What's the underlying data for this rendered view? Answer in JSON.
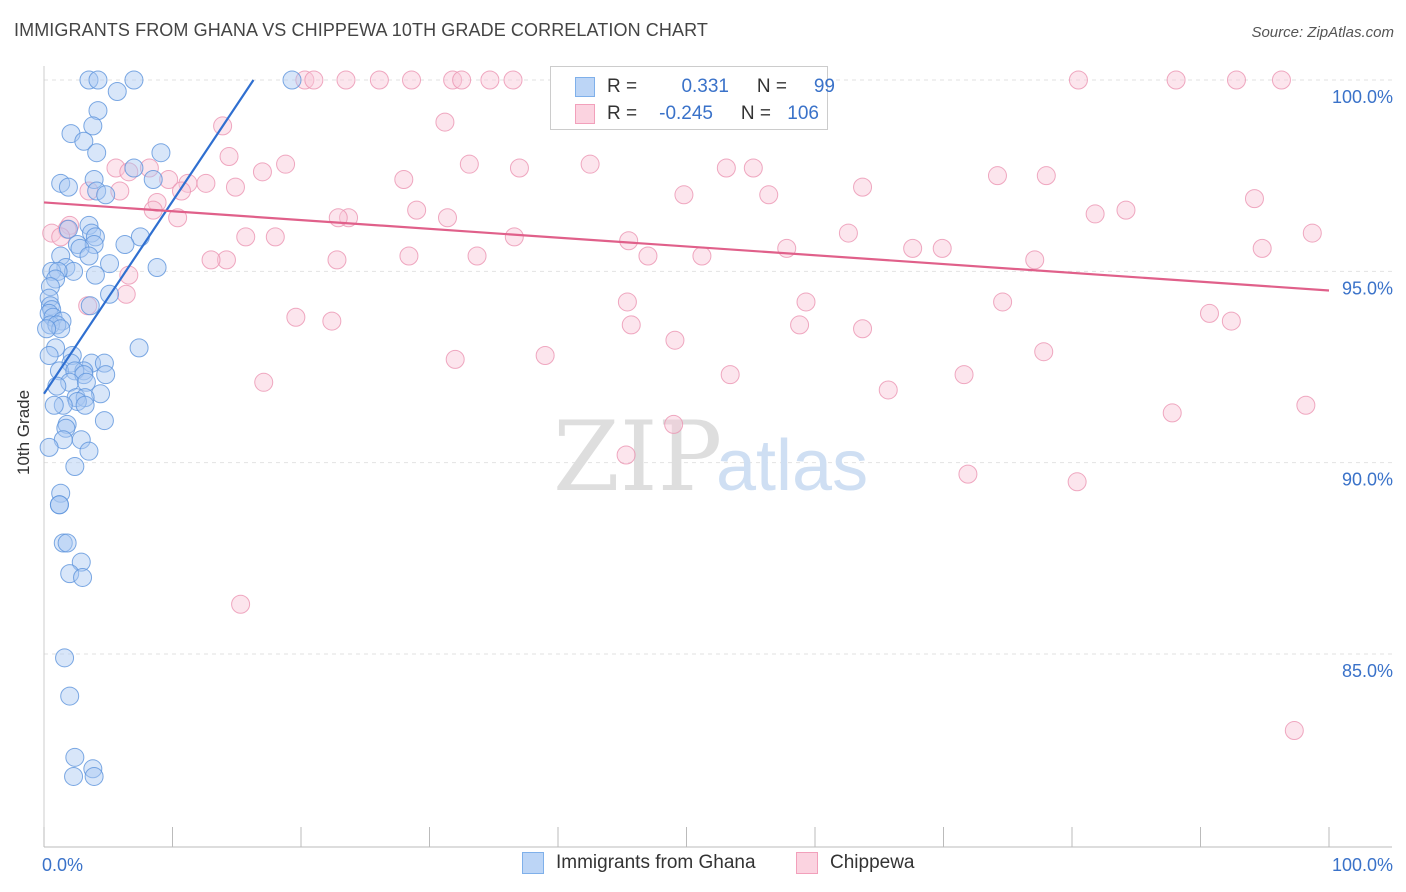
{
  "title": "IMMIGRANTS FROM GHANA VS CHIPPEWA 10TH GRADE CORRELATION CHART",
  "source": "Source: ZipAtlas.com",
  "watermark": {
    "zip": "ZIP",
    "atlas": "atlas"
  },
  "legend": {
    "rows": [
      {
        "r_label": "R =",
        "r_value": "0.331",
        "n_label": "N =",
        "n_value": "99",
        "color": "#7fb0ea"
      },
      {
        "r_label": "R =",
        "r_value": "-0.245",
        "n_label": "N =",
        "n_value": "106",
        "color": "#f2a0bb"
      }
    ]
  },
  "colors": {
    "blue_fill": "#a9c8f2",
    "blue_stroke": "#5c93dc",
    "blue_line": "#2f6fd0",
    "pink_fill": "#f8c6d6",
    "pink_stroke": "#eb93b1",
    "pink_line": "#e0608a",
    "axis_text": "#3a72c9",
    "grid": "#e2e2e2"
  },
  "chart_data": {
    "type": "scatter",
    "title": "IMMIGRANTS FROM GHANA VS CHIPPEWA 10TH GRADE CORRELATION CHART",
    "xlabel": "",
    "ylabel": "10th Grade",
    "xlim": [
      0,
      100
    ],
    "ylim": [
      80.5,
      100.7
    ],
    "x_tick_labels": [
      {
        "value": 0,
        "label": "0.0%"
      },
      {
        "value": 100,
        "label": "100.0%"
      }
    ],
    "y_tick_labels": [
      {
        "value": 100,
        "label": "100.0%"
      },
      {
        "value": 95,
        "label": "95.0%"
      },
      {
        "value": 90,
        "label": "90.0%"
      },
      {
        "value": 85,
        "label": "85.0%"
      }
    ],
    "series": [
      {
        "name": "Immigrants from Ghana",
        "color": "#7fb0ea",
        "trend": {
          "x": [
            0.0,
            16.3
          ],
          "y": [
            91.8,
            100.0
          ]
        },
        "points": [
          [
            3.5,
            100
          ],
          [
            4.2,
            100
          ],
          [
            7.0,
            100
          ],
          [
            5.7,
            99.7
          ],
          [
            19.3,
            100
          ],
          [
            4.2,
            99.2
          ],
          [
            3.8,
            98.8
          ],
          [
            2.1,
            98.6
          ],
          [
            3.1,
            98.4
          ],
          [
            4.1,
            98.1
          ],
          [
            9.1,
            98.1
          ],
          [
            7.0,
            97.7
          ],
          [
            3.9,
            97.4
          ],
          [
            8.5,
            97.4
          ],
          [
            1.3,
            97.3
          ],
          [
            1.9,
            97.2
          ],
          [
            4.1,
            97.1
          ],
          [
            4.8,
            97.0
          ],
          [
            3.5,
            96.2
          ],
          [
            1.9,
            96.1
          ],
          [
            3.7,
            96.0
          ],
          [
            4.0,
            95.9
          ],
          [
            7.5,
            95.9
          ],
          [
            2.6,
            95.7
          ],
          [
            3.9,
            95.7
          ],
          [
            6.3,
            95.7
          ],
          [
            2.8,
            95.6
          ],
          [
            1.3,
            95.4
          ],
          [
            3.5,
            95.4
          ],
          [
            5.1,
            95.2
          ],
          [
            8.8,
            95.1
          ],
          [
            1.7,
            95.1
          ],
          [
            2.3,
            95.0
          ],
          [
            0.6,
            95.0
          ],
          [
            1.1,
            95.0
          ],
          [
            4.0,
            94.9
          ],
          [
            0.9,
            94.8
          ],
          [
            0.5,
            94.6
          ],
          [
            5.1,
            94.4
          ],
          [
            0.4,
            94.3
          ],
          [
            0.5,
            94.1
          ],
          [
            0.6,
            94.0
          ],
          [
            3.6,
            94.1
          ],
          [
            0.4,
            93.9
          ],
          [
            0.7,
            93.8
          ],
          [
            1.4,
            93.7
          ],
          [
            0.5,
            93.6
          ],
          [
            1.0,
            93.6
          ],
          [
            1.3,
            93.5
          ],
          [
            0.2,
            93.5
          ],
          [
            7.4,
            93.0
          ],
          [
            0.9,
            93.0
          ],
          [
            2.2,
            92.8
          ],
          [
            0.4,
            92.8
          ],
          [
            3.7,
            92.6
          ],
          [
            4.7,
            92.6
          ],
          [
            2.1,
            92.6
          ],
          [
            1.2,
            92.4
          ],
          [
            3.1,
            92.4
          ],
          [
            4.8,
            92.3
          ],
          [
            2.4,
            92.4
          ],
          [
            3.1,
            92.3
          ],
          [
            2.0,
            92.1
          ],
          [
            3.3,
            92.1
          ],
          [
            1.0,
            92.0
          ],
          [
            4.4,
            91.8
          ],
          [
            2.5,
            91.7
          ],
          [
            3.2,
            91.7
          ],
          [
            2.6,
            91.6
          ],
          [
            1.5,
            91.5
          ],
          [
            0.8,
            91.5
          ],
          [
            3.2,
            91.5
          ],
          [
            4.7,
            91.1
          ],
          [
            1.8,
            91.0
          ],
          [
            1.7,
            90.9
          ],
          [
            1.5,
            90.6
          ],
          [
            2.9,
            90.6
          ],
          [
            0.4,
            90.4
          ],
          [
            3.5,
            90.3
          ],
          [
            2.4,
            89.9
          ],
          [
            1.3,
            89.2
          ],
          [
            1.2,
            88.9
          ],
          [
            1.2,
            88.9
          ],
          [
            1.5,
            87.9
          ],
          [
            1.8,
            87.9
          ],
          [
            2.9,
            87.4
          ],
          [
            2.0,
            87.1
          ],
          [
            3.0,
            87.0
          ],
          [
            1.6,
            84.9
          ],
          [
            2.0,
            83.9
          ],
          [
            2.4,
            82.3
          ],
          [
            3.8,
            82.0
          ],
          [
            2.3,
            81.8
          ],
          [
            3.9,
            81.8
          ]
        ]
      },
      {
        "name": "Chippewa",
        "color": "#f2a0bb",
        "trend": {
          "x": [
            0.0,
            100.0
          ],
          "y": [
            96.8,
            94.5
          ]
        },
        "points": [
          [
            20.3,
            100
          ],
          [
            21.0,
            100
          ],
          [
            23.5,
            100
          ],
          [
            26.1,
            100
          ],
          [
            28.6,
            100
          ],
          [
            31.8,
            100
          ],
          [
            32.5,
            100
          ],
          [
            34.7,
            100
          ],
          [
            36.5,
            100
          ],
          [
            80.5,
            100
          ],
          [
            88.1,
            100
          ],
          [
            92.8,
            100
          ],
          [
            96.3,
            100
          ],
          [
            13.9,
            98.8
          ],
          [
            31.2,
            98.9
          ],
          [
            14.4,
            98.0
          ],
          [
            5.6,
            97.7
          ],
          [
            8.2,
            97.7
          ],
          [
            18.8,
            97.8
          ],
          [
            33.1,
            97.8
          ],
          [
            37.0,
            97.7
          ],
          [
            42.5,
            97.8
          ],
          [
            53.1,
            97.7
          ],
          [
            55.2,
            97.7
          ],
          [
            6.6,
            97.6
          ],
          [
            17.0,
            97.6
          ],
          [
            9.7,
            97.4
          ],
          [
            12.6,
            97.3
          ],
          [
            28.0,
            97.4
          ],
          [
            74.2,
            97.5
          ],
          [
            78.0,
            97.5
          ],
          [
            11.2,
            97.3
          ],
          [
            14.9,
            97.2
          ],
          [
            3.5,
            97.1
          ],
          [
            5.9,
            97.1
          ],
          [
            63.7,
            97.2
          ],
          [
            10.7,
            97.1
          ],
          [
            49.8,
            97.0
          ],
          [
            56.4,
            97.0
          ],
          [
            94.2,
            96.9
          ],
          [
            8.8,
            96.8
          ],
          [
            8.5,
            96.6
          ],
          [
            29.0,
            96.6
          ],
          [
            81.8,
            96.5
          ],
          [
            10.4,
            96.4
          ],
          [
            23.7,
            96.4
          ],
          [
            22.9,
            96.4
          ],
          [
            31.4,
            96.4
          ],
          [
            84.2,
            96.6
          ],
          [
            2.0,
            96.2
          ],
          [
            1.8,
            96.1
          ],
          [
            0.6,
            96.0
          ],
          [
            62.6,
            96.0
          ],
          [
            15.7,
            95.9
          ],
          [
            18.0,
            95.9
          ],
          [
            1.3,
            95.9
          ],
          [
            45.5,
            95.8
          ],
          [
            36.6,
            95.9
          ],
          [
            57.8,
            95.6
          ],
          [
            67.6,
            95.6
          ],
          [
            69.9,
            95.6
          ],
          [
            94.8,
            95.6
          ],
          [
            98.7,
            96.0
          ],
          [
            47.0,
            95.4
          ],
          [
            51.2,
            95.4
          ],
          [
            14.2,
            95.3
          ],
          [
            13.0,
            95.3
          ],
          [
            22.8,
            95.3
          ],
          [
            28.4,
            95.4
          ],
          [
            33.7,
            95.4
          ],
          [
            77.1,
            95.3
          ],
          [
            6.6,
            94.9
          ],
          [
            6.4,
            94.4
          ],
          [
            45.4,
            94.2
          ],
          [
            59.3,
            94.2
          ],
          [
            74.6,
            94.2
          ],
          [
            3.4,
            94.1
          ],
          [
            19.6,
            93.8
          ],
          [
            22.4,
            93.7
          ],
          [
            45.7,
            93.6
          ],
          [
            58.8,
            93.6
          ],
          [
            63.7,
            93.5
          ],
          [
            90.7,
            93.9
          ],
          [
            92.4,
            93.7
          ],
          [
            49.1,
            93.2
          ],
          [
            39.0,
            92.8
          ],
          [
            32.0,
            92.7
          ],
          [
            77.8,
            92.9
          ],
          [
            53.4,
            92.3
          ],
          [
            71.6,
            92.3
          ],
          [
            17.1,
            92.1
          ],
          [
            65.7,
            91.9
          ],
          [
            87.8,
            91.3
          ],
          [
            98.2,
            91.5
          ],
          [
            49.0,
            91.0
          ],
          [
            45.3,
            90.2
          ],
          [
            71.9,
            89.7
          ],
          [
            80.4,
            89.5
          ],
          [
            15.3,
            86.3
          ],
          [
            97.3,
            83.0
          ]
        ]
      }
    ]
  },
  "bottom_legend": [
    {
      "label": "Immigrants from Ghana",
      "color": "#7fb0ea"
    },
    {
      "label": "Chippewa",
      "color": "#f2a0bb"
    }
  ]
}
